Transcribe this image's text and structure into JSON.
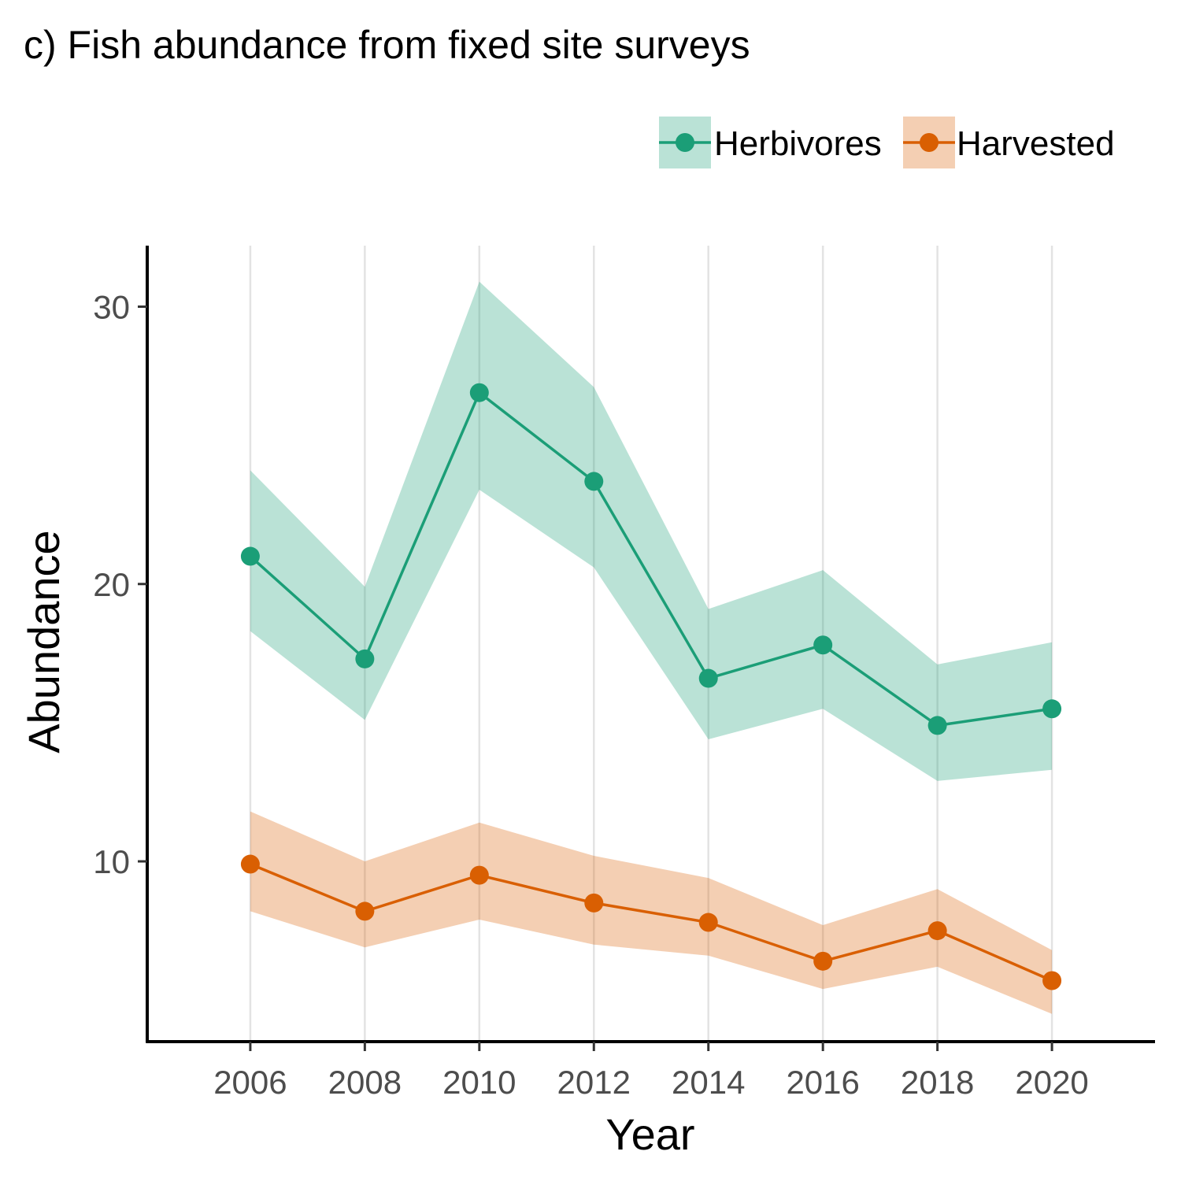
{
  "chart_data": {
    "type": "line",
    "title": "c) Fish abundance from fixed site surveys",
    "xlabel": "Year",
    "ylabel": "Abundance",
    "x": [
      2006,
      2008,
      2010,
      2012,
      2014,
      2016,
      2018,
      2020
    ],
    "xlim": [
      2004.2,
      2021.8
    ],
    "ylim": [
      3.5,
      32.2
    ],
    "yticks": [
      10,
      20,
      30
    ],
    "grid": "vertical major only",
    "legend_position": "top-right",
    "series": [
      {
        "name": "Herbivores",
        "color": "#1b9e77",
        "band_color": "#1b9e77",
        "values": [
          21.0,
          17.3,
          26.9,
          23.7,
          16.6,
          17.8,
          14.9,
          15.5
        ],
        "lower": [
          18.3,
          15.1,
          23.4,
          20.6,
          14.4,
          15.5,
          12.9,
          13.3
        ],
        "upper": [
          24.1,
          19.9,
          30.9,
          27.1,
          19.1,
          20.5,
          17.1,
          17.9
        ]
      },
      {
        "name": "Harvested",
        "color": "#d95f02",
        "band_color": "#d95f02",
        "values": [
          9.9,
          8.2,
          9.5,
          8.5,
          7.8,
          6.4,
          7.5,
          5.7
        ],
        "lower": [
          8.2,
          6.9,
          7.9,
          7.0,
          6.6,
          5.4,
          6.2,
          4.5
        ],
        "upper": [
          11.8,
          10.0,
          11.4,
          10.2,
          9.4,
          7.7,
          9.0,
          6.8
        ]
      }
    ]
  }
}
